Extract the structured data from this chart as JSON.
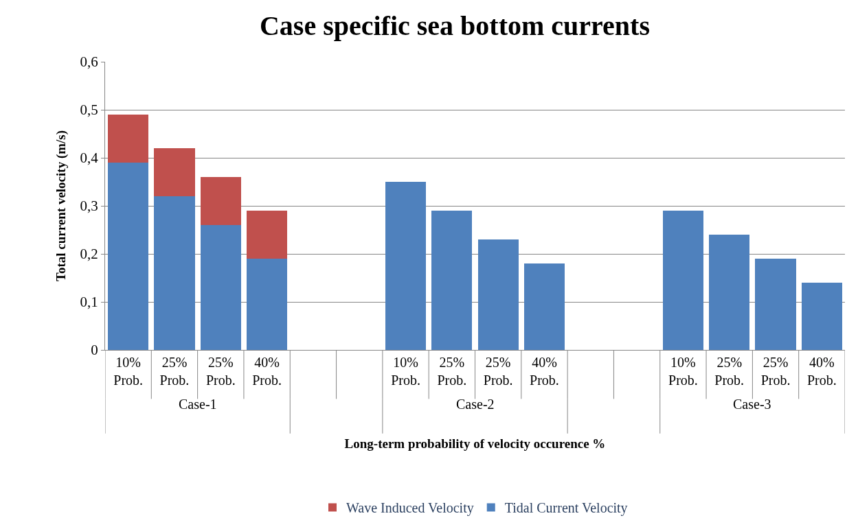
{
  "chart_data": {
    "type": "bar",
    "title": "Case specific sea bottom currents",
    "xlabel": "Long-term probability of velocity occurence %",
    "ylabel": "Total current velocity (m/s)",
    "categories": [
      "10%\nProb.",
      "25%\nProb.",
      "25%\nProb.",
      "40%\nProb.",
      null,
      null,
      "10%\nProb.",
      "25%\nProb.",
      "25%\nProb.",
      "40%\nProb.",
      null,
      null,
      "10%\nProb.",
      "25%\nProb.",
      "25%\nProb.",
      "40%\nProb."
    ],
    "series": [
      {
        "name": "Tidal Current Velocity",
        "color": "#4f81bd",
        "values": [
          0.39,
          0.32,
          0.26,
          0.19,
          null,
          null,
          0.35,
          0.29,
          0.23,
          0.18,
          null,
          null,
          0.29,
          0.24,
          0.19,
          0.14
        ]
      },
      {
        "name": "Wave Induced Velocity",
        "color": "#c0504d",
        "values": [
          0.1,
          0.1,
          0.1,
          0.1,
          null,
          null,
          null,
          null,
          null,
          null,
          null,
          null,
          null,
          null,
          null,
          null
        ]
      }
    ],
    "stacked": true,
    "annotations": [
      "Case-1",
      "Case-2",
      "Case-3"
    ],
    "ylim": [
      0,
      0.6
    ],
    "yticks": [
      0,
      {
        "value": 0.1,
        "label": "0,1"
      },
      {
        "value": 0.2,
        "label": "0,2"
      },
      {
        "value": 0.3,
        "label": "0,3"
      },
      {
        "value": 0.4,
        "label": "0,4"
      },
      {
        "value": 0.5,
        "label": "0,5"
      },
      {
        "value": 0.6,
        "label": "0,6"
      }
    ],
    "grid": "y",
    "legend": "bottom"
  }
}
